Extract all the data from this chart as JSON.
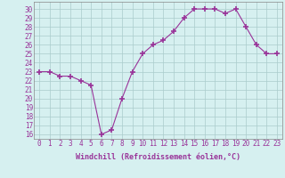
{
  "x": [
    0,
    1,
    2,
    3,
    4,
    5,
    6,
    7,
    8,
    9,
    10,
    11,
    12,
    13,
    14,
    15,
    16,
    17,
    18,
    19,
    20,
    21,
    22,
    23
  ],
  "y": [
    23,
    23,
    22.5,
    22.5,
    22,
    21.5,
    16,
    16.5,
    20,
    23,
    25,
    26,
    26.5,
    27.5,
    29,
    30,
    30,
    30,
    29.5,
    30,
    28,
    26,
    25,
    25
  ],
  "line_color": "#993399",
  "marker": "+",
  "marker_size": 4,
  "bg_color": "#d6f0f0",
  "grid_color": "#aacccc",
  "xlabel": "Windchill (Refroidissement éolien,°C)",
  "xlabel_color": "#993399",
  "ylabel_ticks": [
    16,
    17,
    18,
    19,
    20,
    21,
    22,
    23,
    24,
    25,
    26,
    27,
    28,
    29,
    30
  ],
  "ylim": [
    15.5,
    30.8
  ],
  "xlim": [
    -0.5,
    23.5
  ],
  "tick_color": "#993399",
  "label_fontsize": 6,
  "tick_fontsize": 5.5
}
